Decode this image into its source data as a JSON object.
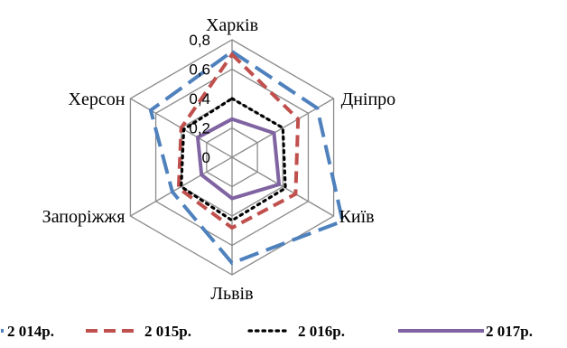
{
  "chart_data": {
    "type": "radar",
    "axes": [
      "Харків",
      "Дніпро",
      "Київ",
      "Львів",
      "Запоріжжя",
      "Херсон"
    ],
    "rlim": [
      0,
      0.8
    ],
    "ticks": [
      "0",
      "0,2",
      "0,4",
      "0,6",
      "0,8"
    ],
    "tick_values": [
      0,
      0.2,
      0.4,
      0.6,
      0.8
    ],
    "legend_position": "bottom",
    "series": [
      {
        "name": "2 014р.",
        "values": [
          0.72,
          0.67,
          0.87,
          0.72,
          0.47,
          0.64
        ],
        "color": "#4f81bd",
        "style": "longdash"
      },
      {
        "name": "2 015р.",
        "values": [
          0.7,
          0.52,
          0.5,
          0.48,
          0.42,
          0.4
        ],
        "color": "#c0504d",
        "style": "dash"
      },
      {
        "name": "2 016р.",
        "values": [
          0.4,
          0.4,
          0.42,
          0.43,
          0.4,
          0.38
        ],
        "color": "#000000",
        "style": "dot"
      },
      {
        "name": "2 017р.",
        "values": [
          0.26,
          0.33,
          0.37,
          0.28,
          0.24,
          0.27
        ],
        "color": "#8064a2",
        "style": "solid"
      }
    ]
  }
}
